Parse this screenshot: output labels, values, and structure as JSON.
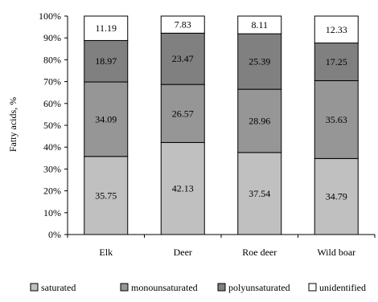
{
  "chart_data": {
    "type": "bar",
    "stacked": true,
    "normalized": true,
    "categories": [
      "Elk",
      "Deer",
      "Roe deer",
      "Wild boar"
    ],
    "series": [
      {
        "name": "saturated",
        "values": [
          35.75,
          42.13,
          37.54,
          34.79
        ],
        "color": "#c0c0c0",
        "labels": [
          "35.75",
          "42.13",
          "37.54",
          "34.79"
        ]
      },
      {
        "name": "monounsaturated",
        "values": [
          34.09,
          26.57,
          28.96,
          35.63
        ],
        "color": "#969696",
        "labels": [
          "34.09",
          "26.57",
          "28.96",
          "35.63"
        ]
      },
      {
        "name": "polyunsaturated",
        "values": [
          18.97,
          23.47,
          25.39,
          17.25
        ],
        "color": "#808080",
        "labels": [
          "18.97",
          "23.47",
          "25.39",
          "17.25"
        ]
      },
      {
        "name": "unidentified",
        "values": [
          11.19,
          7.83,
          8.11,
          12.33
        ],
        "color": "#ffffff",
        "labels": [
          "11.19",
          "7.83",
          "8.11",
          "12.33"
        ]
      }
    ],
    "ylabel": "Fatty acids, %",
    "ylim": [
      0,
      100
    ],
    "yticks": [
      "0%",
      "10%",
      "20%",
      "30%",
      "40%",
      "50%",
      "60%",
      "70%",
      "80%",
      "90%",
      "100%"
    ],
    "grid": false,
    "legend_position": "bottom"
  }
}
